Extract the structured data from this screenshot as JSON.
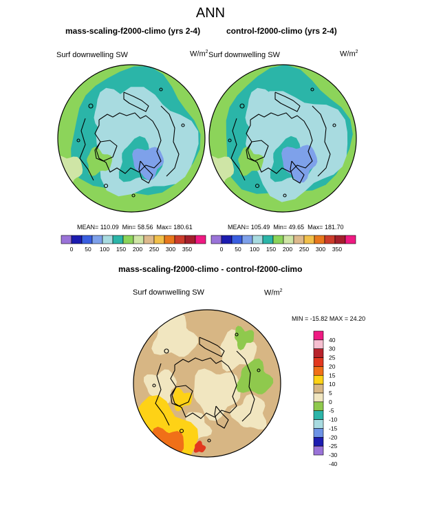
{
  "title": "ANN",
  "panels": [
    {
      "title": "mass-scaling-f2000-climo (yrs 2-4)",
      "variable": "Surf downwelling SW",
      "units": "W/m",
      "units_exp": "2",
      "stats": {
        "mean_label": "MEAN=",
        "mean": "110.09",
        "min_label": "Min=",
        "min": "58.56",
        "max_label": "Max=",
        "max": "180.61"
      }
    },
    {
      "title": "control-f2000-climo (yrs 2-4)",
      "variable": "Surf downwelling SW",
      "units": "W/m",
      "units_exp": "2",
      "stats": {
        "mean_label": "MEAN=",
        "mean": "105.49",
        "min_label": "Min=",
        "min": "49.65",
        "max_label": "Max=",
        "max": "181.70"
      }
    },
    {
      "title": "mass-scaling-f2000-climo - control-f2000-climo",
      "variable": "Surf downwelling SW",
      "units": "W/m",
      "units_exp": "2",
      "stats": {
        "min_label": "MIN =",
        "min": "-15.82",
        "max_label": "MAX =",
        "max": "24.20"
      }
    }
  ],
  "colorbar_abs": {
    "colors": [
      "#9a73d8",
      "#1c1cb0",
      "#3a5fe0",
      "#7ea1ea",
      "#a8dbe0",
      "#2bb5a8",
      "#8cd45a",
      "#cfe5a6",
      "#ddb98c",
      "#f2c04a",
      "#e8781c",
      "#cc3d2b",
      "#a31f2c",
      "#ef1a82"
    ],
    "labels": [
      "0",
      "50",
      "100",
      "150",
      "200",
      "250",
      "300",
      "350"
    ]
  },
  "colorbar_diff": {
    "colors": [
      "#ef1a82",
      "#f6bfd0",
      "#b8232b",
      "#e2381f",
      "#f07018",
      "#fed216",
      "#d7b684",
      "#f1e6c0",
      "#8fc94d",
      "#2bb5a8",
      "#a8dbe0",
      "#6d93e6",
      "#1c1cb0",
      "#9a73d8"
    ],
    "labels": [
      "40",
      "30",
      "25",
      "20",
      "15",
      "10",
      "5",
      "0",
      "-5",
      "-10",
      "-15",
      "-20",
      "-25",
      "-30",
      "-40"
    ]
  },
  "map_colors": {
    "abs_outer": "#8cd45a",
    "abs_mid": "#2bb5a8",
    "abs_inner": "#a8dbe0",
    "abs_min": "#7ea1ea",
    "abs_light": "#cfe5a6",
    "diff_base": "#d7b684",
    "diff_light": "#f1e6c0",
    "diff_green": "#8fc94d",
    "diff_yellow": "#fed216",
    "diff_orange": "#f07018",
    "diff_red": "#e2381f",
    "coast": "#000000"
  }
}
